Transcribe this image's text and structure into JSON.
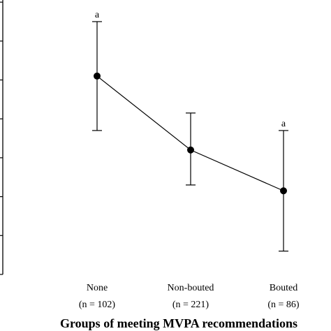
{
  "chart_data": {
    "type": "line",
    "title": "",
    "xlabel": "Groups of meeting MVPA recommendations",
    "ylabel": "",
    "categories": [
      "None",
      "Non-bouted",
      "Bouted"
    ],
    "category_sublabels": [
      "(n = 102)",
      "(n = 221)",
      "(n = 86)"
    ],
    "series": [
      {
        "values": [
          5.1,
          3.2,
          2.15
        ],
        "error_low": [
          3.7,
          2.3,
          0.6
        ],
        "error_high": [
          6.5,
          4.15,
          3.7
        ],
        "annotations": [
          "a",
          "",
          "a"
        ]
      }
    ],
    "ylim": [
      0,
      7
    ],
    "grid": false,
    "legend": "none",
    "line_color": "#000000",
    "marker_color": "#000000"
  }
}
